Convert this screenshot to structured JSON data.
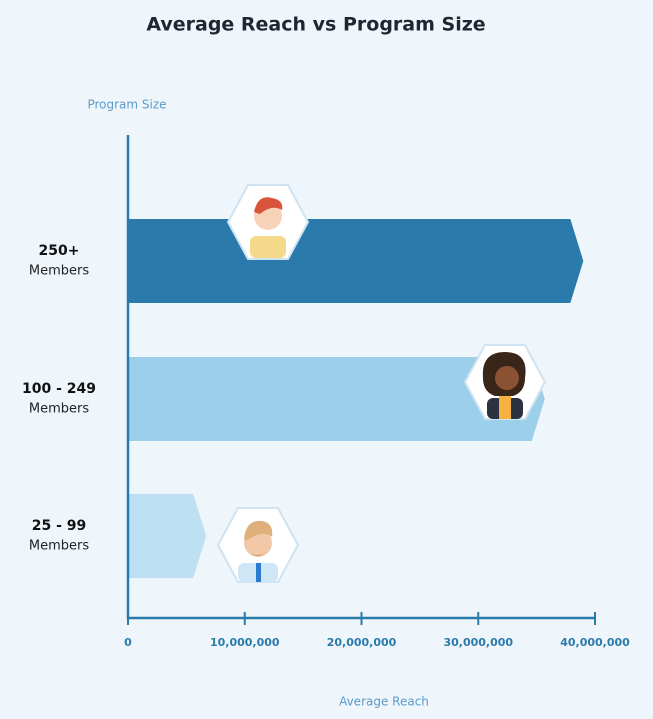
{
  "chart_data": {
    "type": "bar",
    "orientation": "horizontal",
    "title": "Average Reach vs Program Size",
    "y_label": "Program Size",
    "x_label": "Average Reach",
    "categories": [
      "250+",
      "100 - 249",
      "25 - 99"
    ],
    "category_units": [
      "Members",
      "Members",
      "Members"
    ],
    "values": [
      39000000,
      35700000,
      6700000
    ],
    "colors": [
      "#2a7aab",
      "#9ccfea",
      "#bde0f2"
    ],
    "xlim": [
      0,
      40000000
    ],
    "xticks": [
      0,
      {
        "value": 10000000,
        "label": "10,000,000"
      },
      {
        "value": 20000000,
        "label": "20,000,000"
      },
      {
        "value": 30000000,
        "label": "30,000,000"
      },
      {
        "value": 40000000,
        "label": "40,000,000"
      }
    ],
    "grid": false
  }
}
